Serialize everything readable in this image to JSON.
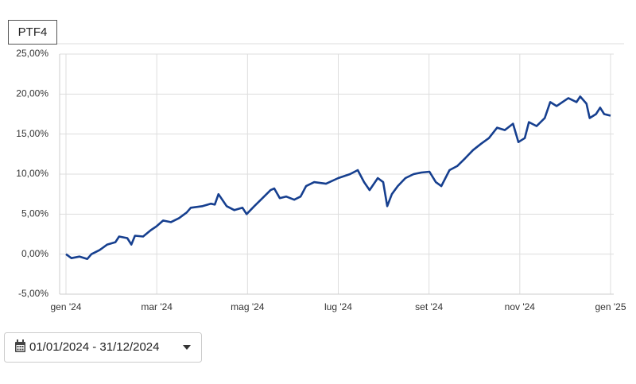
{
  "tab": "PTF4",
  "date_range": "01/01/2024 - 31/12/2024",
  "chart_data": {
    "type": "line",
    "grid": true,
    "xlim": [
      -0.14,
      12.07
    ],
    "xticks": [
      {
        "value": 0,
        "label": "gen '24"
      },
      {
        "value": 2,
        "label": "mar '24"
      },
      {
        "value": 4,
        "label": "mag '24"
      },
      {
        "value": 6,
        "label": "lug '24"
      },
      {
        "value": 8,
        "label": "set '24"
      },
      {
        "value": 10,
        "label": "nov '24"
      },
      {
        "value": 12,
        "label": "gen '25"
      }
    ],
    "ylim": [
      -5,
      25
    ],
    "yticks": [
      {
        "value": -5,
        "label": "-5,00%"
      },
      {
        "value": 0,
        "label": "0,00%"
      },
      {
        "value": 5,
        "label": "5,00%"
      },
      {
        "value": 10,
        "label": "10,00%"
      },
      {
        "value": 15,
        "label": "15,00%"
      },
      {
        "value": 20,
        "label": "20,00%"
      },
      {
        "value": 25,
        "label": "25,00%"
      }
    ],
    "x": [
      0,
      0.12,
      0.3,
      0.47,
      0.56,
      0.74,
      0.91,
      1.09,
      1.17,
      1.35,
      1.44,
      1.52,
      1.7,
      1.87,
      2.0,
      2.14,
      2.31,
      2.49,
      2.66,
      2.75,
      3.01,
      3.19,
      3.28,
      3.36,
      3.54,
      3.71,
      3.89,
      3.98,
      4.15,
      4.33,
      4.51,
      4.59,
      4.71,
      4.85,
      5.03,
      5.17,
      5.29,
      5.47,
      5.73,
      6.0,
      6.26,
      6.43,
      6.57,
      6.69,
      6.87,
      6.99,
      7.08,
      7.18,
      7.31,
      7.48,
      7.66,
      7.83,
      8.01,
      8.15,
      8.27,
      8.45,
      8.62,
      8.8,
      8.97,
      9.15,
      9.32,
      9.5,
      9.67,
      9.85,
      9.97,
      10.11,
      10.2,
      10.37,
      10.55,
      10.67,
      10.81,
      11.07,
      11.25,
      11.33,
      11.47,
      11.54,
      11.68,
      11.77,
      11.86,
      12.0
    ],
    "series": [
      {
        "color": "#163f8f",
        "values": [
          0,
          -0.5,
          -0.3,
          -0.6,
          0,
          0.5,
          1.2,
          1.5,
          2.2,
          2.0,
          1.2,
          2.3,
          2.2,
          3.0,
          3.5,
          4.2,
          4.0,
          4.5,
          5.2,
          5.8,
          6.0,
          6.3,
          6.2,
          7.5,
          6.0,
          5.5,
          5.8,
          5.0,
          6.0,
          7.0,
          8.0,
          8.2,
          7.0,
          7.2,
          6.8,
          7.2,
          8.5,
          9.0,
          8.8,
          9.5,
          10.0,
          10.5,
          9.0,
          8.0,
          9.5,
          9.0,
          6.0,
          7.5,
          8.5,
          9.5,
          10.0,
          10.2,
          10.3,
          9.0,
          8.5,
          10.5,
          11.0,
          12.0,
          13.0,
          13.8,
          14.5,
          15.8,
          15.5,
          16.3,
          14.0,
          14.5,
          16.5,
          16.0,
          17.0,
          19.0,
          18.5,
          19.5,
          19.0,
          19.7,
          18.8,
          17.0,
          17.5,
          18.3,
          17.5,
          17.3
        ]
      }
    ]
  }
}
